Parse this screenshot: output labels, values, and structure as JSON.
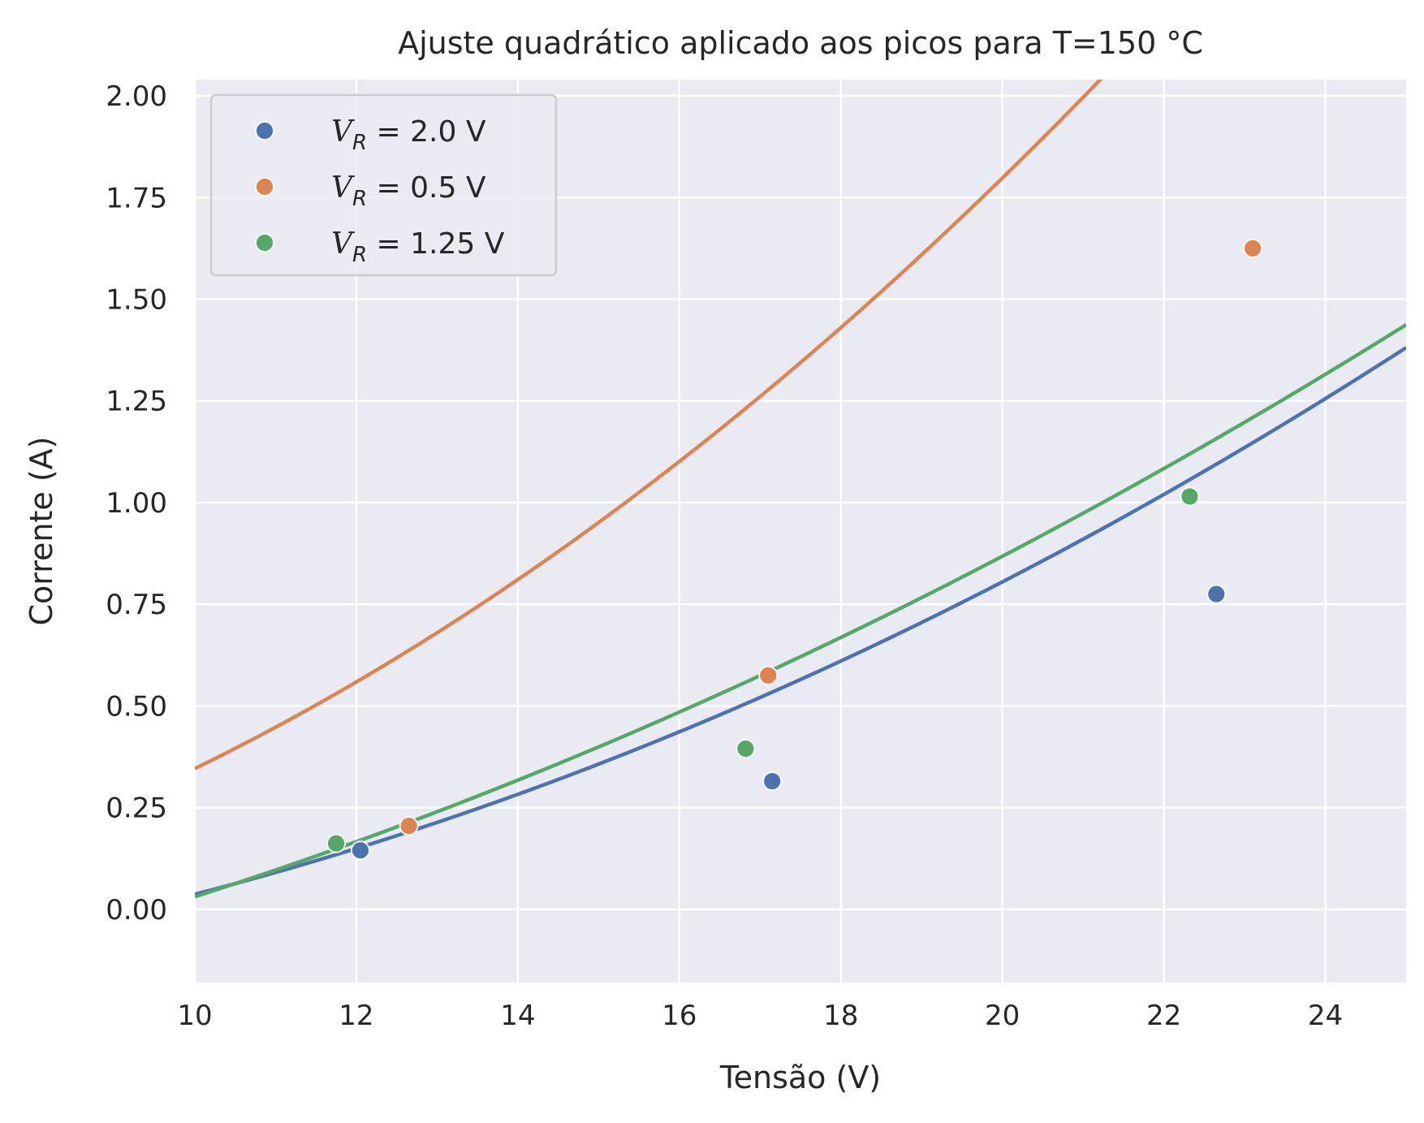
{
  "chart_data": {
    "type": "scatter",
    "title": "Ajuste quadrático aplicado aos picos para T=150 °C",
    "xlabel": "Tensão (V)",
    "ylabel": "Corrente (A)",
    "xlim": [
      10,
      25
    ],
    "ylim": [
      -0.18,
      2.04
    ],
    "xticks": [
      10,
      12,
      14,
      16,
      18,
      20,
      22,
      24
    ],
    "xtick_labels": [
      "10",
      "12",
      "14",
      "16",
      "18",
      "20",
      "22",
      "24"
    ],
    "yticks": [
      0.0,
      0.25,
      0.5,
      0.75,
      1.0,
      1.25,
      1.5,
      1.75,
      2.0
    ],
    "ytick_labels": [
      "0.00",
      "0.25",
      "0.50",
      "0.75",
      "1.00",
      "1.25",
      "1.50",
      "1.75",
      "2.00"
    ],
    "grid": true,
    "legend_position": "top-left",
    "series": [
      {
        "name": "V_R = 2.0 V",
        "legend_var": "V",
        "legend_sub": "R",
        "legend_rest": " = 2.0 V",
        "color": "#4c72b0",
        "points": [
          [
            12.05,
            0.145
          ],
          [
            17.15,
            0.315
          ],
          [
            22.65,
            0.775
          ]
        ],
        "fit": [
          0.00256,
          0.0,
          -0.219
        ]
      },
      {
        "name": "V_R = 0.5 V",
        "legend_var": "V",
        "legend_sub": "R",
        "legend_rest": " = 0.5 V",
        "color": "#dd8452",
        "points": [
          [
            12.65,
            0.205
          ],
          [
            17.1,
            0.575
          ],
          [
            23.1,
            1.625
          ]
        ],
        "fit": [
          0.00484,
          0.0,
          -0.138
        ]
      },
      {
        "name": "V_R = 1.25 V",
        "legend_var": "V",
        "legend_sub": "R",
        "legend_rest": " = 1.25 V",
        "color": "#55a868",
        "points": [
          [
            11.75,
            0.162
          ],
          [
            16.82,
            0.395
          ],
          [
            22.32,
            1.015
          ]
        ],
        "fit": [
          0.00201,
          0.0234,
          -0.404
        ]
      }
    ]
  }
}
